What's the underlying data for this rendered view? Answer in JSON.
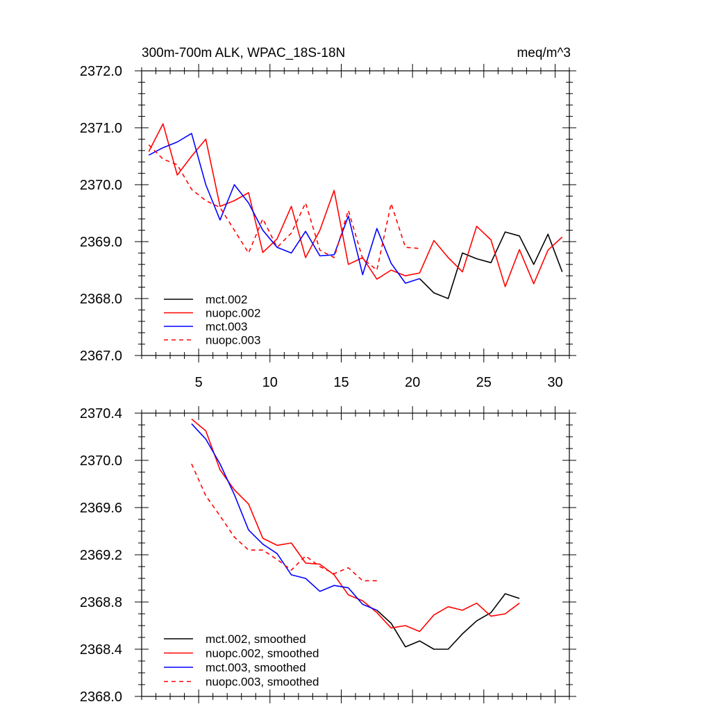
{
  "chart_data": [
    {
      "type": "line",
      "title": "300m-700m ALK, WPAC_18S-18N",
      "units": "meq/m^3",
      "xlabel": "",
      "ylabel": "",
      "xlim": [
        1,
        31
      ],
      "ylim": [
        2367.0,
        2372.0
      ],
      "xticks": [
        5,
        10,
        15,
        20,
        25,
        30
      ],
      "xtick_labels": [
        "5",
        "10",
        "15",
        "20",
        "25",
        "30"
      ],
      "yticks": [
        2367.0,
        2368.0,
        2369.0,
        2370.0,
        2371.0,
        2372.0
      ],
      "ytick_labels": [
        "2367.0",
        "2368.0",
        "2369.0",
        "2370.0",
        "2371.0",
        "2372.0"
      ],
      "grid": false,
      "legend_position": "bottom-left",
      "series": [
        {
          "name": "mct.002",
          "color": "#000000",
          "dash": "solid",
          "x": [
            20.5,
            21.5,
            22.5,
            23.5,
            24.5,
            25.5,
            26.5,
            27.5,
            28.5,
            29.5,
            30.5
          ],
          "y": [
            2368.35,
            2368.1,
            2368.0,
            2368.8,
            2368.7,
            2368.63,
            2369.17,
            2369.1,
            2368.6,
            2369.13,
            2368.47
          ]
        },
        {
          "name": "nuopc.002",
          "color": "#ff0000",
          "dash": "solid",
          "x": [
            1.5,
            2.5,
            3.5,
            4.5,
            5.5,
            6.5,
            7.5,
            8.5,
            9.5,
            10.5,
            11.5,
            12.5,
            13.5,
            14.5,
            15.5,
            16.5,
            17.5,
            18.5,
            19.5,
            20.5,
            21.5,
            22.5,
            23.5,
            24.5,
            25.5,
            26.5,
            27.5,
            28.5,
            29.5,
            30.5
          ],
          "y": [
            2370.58,
            2371.07,
            2370.17,
            2370.5,
            2370.8,
            2369.62,
            2369.72,
            2369.86,
            2368.81,
            2369.05,
            2369.62,
            2368.72,
            2369.2,
            2369.9,
            2368.6,
            2368.72,
            2368.34,
            2368.5,
            2368.4,
            2368.45,
            2369.02,
            2368.72,
            2368.47,
            2369.27,
            2369.03,
            2368.21,
            2368.86,
            2368.26,
            2368.85,
            2369.08
          ]
        },
        {
          "name": "mct.003",
          "color": "#0000ff",
          "dash": "solid",
          "x": [
            1.5,
            2.5,
            3.5,
            4.5,
            5.5,
            6.5,
            7.5,
            8.5,
            9.5,
            10.5,
            11.5,
            12.5,
            13.5,
            14.5,
            15.5,
            16.5,
            17.5,
            18.5,
            19.5,
            20.5
          ],
          "y": [
            2370.52,
            2370.65,
            2370.75,
            2370.9,
            2370.0,
            2369.38,
            2370.0,
            2369.68,
            2369.2,
            2368.9,
            2368.8,
            2369.18,
            2368.75,
            2368.77,
            2369.45,
            2368.42,
            2369.23,
            2368.62,
            2368.27,
            2368.35
          ]
        },
        {
          "name": "nuopc.003",
          "color": "#ff0000",
          "dash": "dashed",
          "x": [
            1.5,
            2.5,
            3.5,
            4.5,
            5.5,
            6.5,
            7.5,
            8.5,
            9.5,
            10.5,
            11.5,
            12.5,
            13.5,
            14.5,
            15.5,
            16.5,
            17.5,
            18.5,
            19.5,
            20.5
          ],
          "y": [
            2370.7,
            2370.45,
            2370.35,
            2369.92,
            2369.72,
            2369.6,
            2369.2,
            2368.8,
            2369.4,
            2368.9,
            2369.15,
            2369.68,
            2368.85,
            2368.72,
            2369.55,
            2368.7,
            2368.5,
            2369.67,
            2368.9,
            2368.88
          ]
        }
      ]
    },
    {
      "type": "line",
      "title": "",
      "xlabel": "",
      "ylabel": "",
      "xlim": [
        1,
        31
      ],
      "ylim": [
        2368.0,
        2370.4
      ],
      "xticks": [
        5,
        10,
        15,
        20,
        25,
        30
      ],
      "xtick_labels": [],
      "yticks": [
        2368.0,
        2368.4,
        2368.8,
        2369.2,
        2369.6,
        2370.0,
        2370.4
      ],
      "ytick_labels": [
        "2368.0",
        "2368.4",
        "2368.8",
        "2369.2",
        "2369.6",
        "2370.0",
        "2370.4"
      ],
      "grid": false,
      "legend_position": "bottom-left",
      "series": [
        {
          "name": "mct.002, smoothed",
          "color": "#000000",
          "dash": "solid",
          "x": [
            17.5,
            18.5,
            19.5,
            20.5,
            21.5,
            22.5,
            23.5,
            24.5,
            25.5,
            26.5,
            27.5
          ],
          "y": [
            2368.73,
            2368.62,
            2368.42,
            2368.47,
            2368.4,
            2368.4,
            2368.53,
            2368.64,
            2368.71,
            2368.87,
            2368.83
          ]
        },
        {
          "name": "nuopc.002, smoothed",
          "color": "#ff0000",
          "dash": "solid",
          "x": [
            4.5,
            5.5,
            6.5,
            7.5,
            8.5,
            9.5,
            10.5,
            11.5,
            12.5,
            13.5,
            14.5,
            15.5,
            16.5,
            17.5,
            18.5,
            19.5,
            20.5,
            21.5,
            22.5,
            23.5,
            24.5,
            25.5,
            26.5,
            27.5
          ],
          "y": [
            2370.35,
            2370.25,
            2369.92,
            2369.75,
            2369.63,
            2369.34,
            2369.28,
            2369.3,
            2369.13,
            2369.12,
            2369.03,
            2368.86,
            2368.81,
            2368.71,
            2368.58,
            2368.6,
            2368.55,
            2368.69,
            2368.76,
            2368.73,
            2368.79,
            2368.68,
            2368.7,
            2368.79
          ]
        },
        {
          "name": "mct.003, smoothed",
          "color": "#0000ff",
          "dash": "solid",
          "x": [
            4.5,
            5.5,
            6.5,
            7.5,
            8.5,
            9.5,
            10.5,
            11.5,
            12.5,
            13.5,
            14.5,
            15.5,
            16.5,
            17.5
          ],
          "y": [
            2370.31,
            2370.18,
            2369.97,
            2369.71,
            2369.41,
            2369.29,
            2369.21,
            2369.03,
            2369.0,
            2368.89,
            2368.94,
            2368.92,
            2368.78,
            2368.73
          ]
        },
        {
          "name": "nuopc.003, smoothed",
          "color": "#ff0000",
          "dash": "dashed",
          "x": [
            4.5,
            5.5,
            6.5,
            7.5,
            8.5,
            9.5,
            10.5,
            11.5,
            12.5,
            13.5,
            14.5,
            15.5,
            16.5,
            17.5
          ],
          "y": [
            2369.97,
            2369.7,
            2369.53,
            2369.35,
            2369.24,
            2369.24,
            2369.16,
            2369.07,
            2369.19,
            2369.1,
            2369.04,
            2369.09,
            2368.98,
            2368.98
          ]
        }
      ]
    }
  ]
}
